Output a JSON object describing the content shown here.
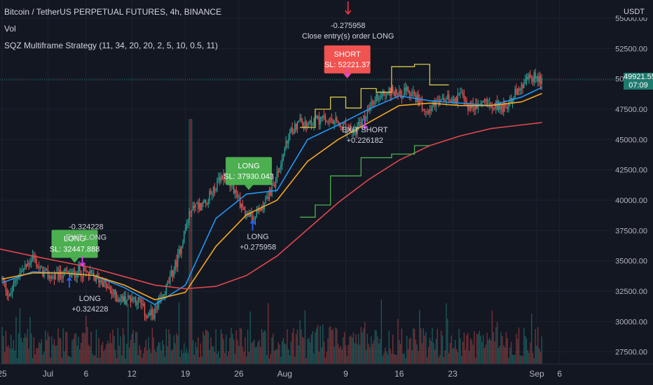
{
  "header": {
    "title": "Bitcoin / TetherUS PERPETUAL FUTURES, 4h, BINANCE",
    "vol": "Vol",
    "strategy": "SQZ Multiframe Strategy (11, 34, 20, 20, 2, 5, 10, 0.5, 11)"
  },
  "currency": "USDT",
  "last_price": {
    "value": "49921.55",
    "countdown": "07:09"
  },
  "colors": {
    "background": "#131722",
    "grid": "#1e222d",
    "candle_up": "#26a69a",
    "candle_down": "#ef5350",
    "ema_fast": "#2196f3",
    "ema_mid": "#f5a623",
    "ma_long": "#e0474c",
    "channel_upper": "#d4c84a",
    "channel_lower": "#4caf50",
    "long_label": "#4caf50",
    "short_label": "#f05350",
    "last_price_line": "#26a69a"
  },
  "chart_data": {
    "type": "line",
    "title": "Bitcoin / TetherUS PERPETUAL FUTURES, 4h, BINANCE",
    "x_ticks": [
      "25",
      "Jul",
      "6",
      "12",
      "19",
      "26",
      "Aug",
      "9",
      "16",
      "23",
      "Sep",
      "6"
    ],
    "y_ticks": [
      27500,
      30000,
      32500,
      35000,
      37500,
      40000,
      42500,
      45000,
      47500,
      50000,
      52500,
      55000
    ],
    "y_tick_labels": [
      "27500.00",
      "30000.00",
      "32500.00",
      "35000.00",
      "37500.00",
      "40000.00",
      "42500.00",
      "45000.00",
      "47500.00",
      "50000.00",
      "52500.00",
      "55000.00"
    ],
    "ylim": [
      26500,
      56500
    ],
    "grid": true,
    "x_days": [
      0,
      6,
      11,
      17,
      24,
      31,
      37,
      45,
      52,
      59,
      70,
      73
    ],
    "price_series": {
      "name": "Bitcoin / TetherUS PERPETUAL FUTURES",
      "day": [
        0,
        1,
        2,
        3,
        4,
        5,
        6,
        7,
        8,
        9,
        10,
        11,
        12,
        13,
        14,
        15,
        16,
        17,
        18,
        19,
        20,
        21,
        22,
        23,
        24,
        25,
        26,
        27,
        28,
        29,
        30,
        31,
        32,
        33,
        34,
        35,
        36,
        37,
        38,
        39,
        40,
        41,
        42,
        43,
        44,
        45,
        46,
        47,
        48,
        49,
        50,
        51,
        52,
        53,
        54,
        55,
        56,
        57,
        58,
        59,
        60,
        61,
        62,
        63,
        64,
        65,
        66,
        67,
        68,
        69,
        70,
        70.7
      ],
      "value": [
        33500,
        32000,
        33800,
        34400,
        35400,
        34200,
        33800,
        33600,
        34000,
        33800,
        34200,
        34000,
        33600,
        33400,
        32600,
        32000,
        31800,
        32000,
        31600,
        30400,
        30700,
        32000,
        33500,
        35200,
        37700,
        39700,
        39500,
        40200,
        41200,
        42000,
        41500,
        40000,
        38800,
        38500,
        39500,
        40500,
        42000,
        44200,
        45800,
        46600,
        45900,
        46700,
        46600,
        46400,
        46300,
        45800,
        45600,
        46300,
        47400,
        48500,
        48800,
        49000,
        48800,
        48900,
        48600,
        47800,
        47600,
        48000,
        48200,
        48400,
        48600,
        47800,
        47600,
        48200,
        48000,
        47800,
        47600,
        48800,
        49200,
        50200,
        50100,
        49921.55
      ]
    },
    "series": [
      {
        "name": "",
        "color": "ema_fast",
        "x": [
          0,
          4,
          8,
          12,
          16,
          20,
          24,
          28,
          32,
          36,
          40,
          44,
          48,
          52,
          56,
          60,
          64,
          68,
          70.7
        ],
        "y": [
          33200,
          34100,
          34000,
          33800,
          32800,
          31400,
          33000,
          38500,
          40500,
          40800,
          45000,
          46200,
          47500,
          48600,
          48200,
          48000,
          47800,
          48500,
          49300
        ]
      },
      {
        "name": "",
        "color": "ema_mid",
        "x": [
          0,
          4,
          8,
          12,
          16,
          20,
          24,
          28,
          32,
          36,
          40,
          44,
          48,
          52,
          56,
          60,
          64,
          68,
          70.7
        ],
        "y": [
          33500,
          34000,
          34000,
          33800,
          33000,
          31800,
          32400,
          36200,
          38800,
          40000,
          43200,
          45000,
          46400,
          47800,
          48000,
          47800,
          47800,
          48100,
          48800
        ]
      },
      {
        "name": "",
        "color": "ma_long",
        "x": [
          -2,
          4,
          8,
          12,
          16,
          20,
          24,
          28,
          32,
          36,
          40,
          44,
          48,
          52,
          56,
          60,
          64,
          68,
          70.7
        ],
        "y": [
          36200,
          35400,
          34900,
          34400,
          33700,
          33000,
          32700,
          32900,
          33800,
          35400,
          37600,
          39800,
          41700,
          43300,
          44500,
          45300,
          45900,
          46200,
          46400
        ]
      }
    ],
    "channel_upper": {
      "x": [
        39,
        41,
        41,
        43,
        43,
        45,
        45,
        47,
        47,
        49,
        49,
        51,
        51,
        54,
        54,
        56,
        56,
        58.5
      ],
      "y": [
        46000,
        46000,
        47500,
        47500,
        48500,
        48500,
        47600,
        47600,
        49200,
        49200,
        48900,
        48900,
        51000,
        51000,
        51200,
        51200,
        49500,
        49500
      ]
    },
    "channel_lower": {
      "x": [
        39,
        41,
        41,
        43,
        43,
        47,
        47,
        51,
        51,
        54,
        54,
        56
      ],
      "y": [
        38600,
        38600,
        39600,
        39600,
        42000,
        42000,
        43500,
        43500,
        43800,
        43800,
        44500,
        44500
      ]
    },
    "signals": [
      {
        "label": "LONG",
        "kind": "long",
        "day": 8.8,
        "price": 33600,
        "text_lines": [
          "LONG",
          "+0.324228"
        ],
        "text_day": 11.5,
        "text_price": 31700
      },
      {
        "label": "EXIT LONG",
        "kind": "exit",
        "day": 10.5,
        "price": 35400,
        "text_lines": [
          "-0.324228",
          "EXIT LONG"
        ],
        "text_day": 11,
        "text_price": 37600
      },
      {
        "label": "LONG",
        "kind": "long",
        "day": 32.8,
        "price": 38300,
        "text_lines": [
          "LONG",
          "+0.275958"
        ],
        "text_day": 33.5,
        "text_price": 36800
      },
      {
        "label": "SHORT",
        "kind": "short",
        "day": 45.2,
        "price": 50200,
        "text_lines": [
          "-0.275958",
          "Close entry(s) order LONG"
        ],
        "text_day": 45.3,
        "text_price": 54200
      },
      {
        "label": "EXIT SHORT",
        "kind": "exit",
        "day": 47.5,
        "price": 46700,
        "text_lines": [
          "EXIT SHORT",
          "+0.226182"
        ],
        "text_day": 47.5,
        "text_price": 45600
      }
    ],
    "trade_boxes": [
      {
        "kind": "long",
        "lines": [
          "LONG",
          "SL: 32447.888"
        ],
        "day": 9.5,
        "price": 36400
      },
      {
        "kind": "long",
        "lines": [
          "LONG",
          "SL: 37930.043"
        ],
        "day": 32.3,
        "price": 42400
      },
      {
        "kind": "short",
        "lines": [
          "SHORT",
          "SL: 52221.37"
        ],
        "day": 45.2,
        "price": 51600
      }
    ],
    "volume_note": "Vol",
    "last_price": 49921.55
  }
}
